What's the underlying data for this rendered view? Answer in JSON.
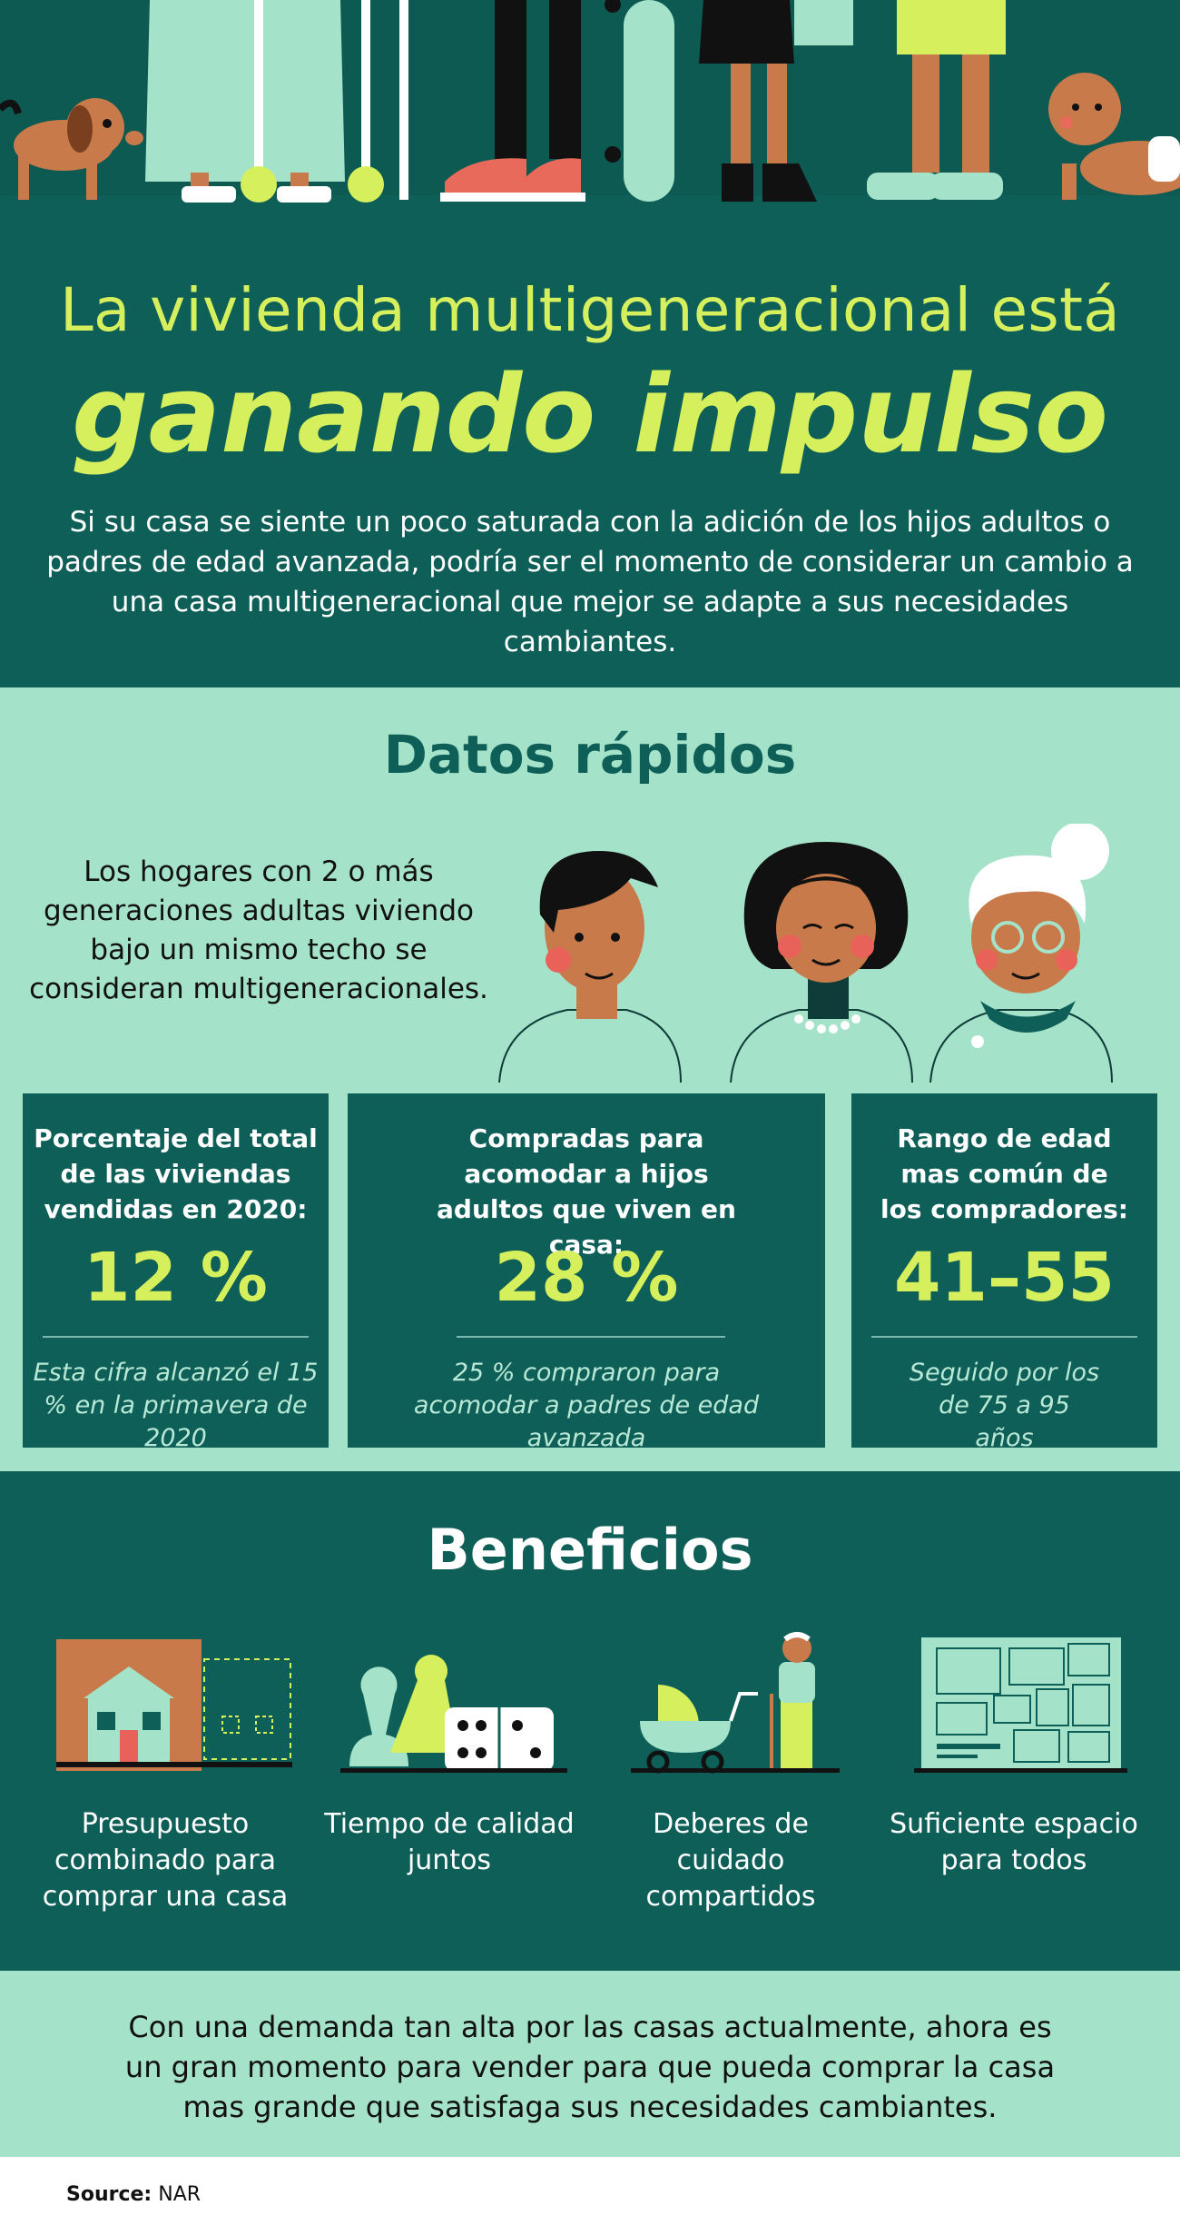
{
  "hero": {
    "alt_icons": [
      "dog-icon",
      "walker-icon",
      "sneakers-icon",
      "skateboard-icon",
      "baby-icon"
    ]
  },
  "intro": {
    "title_line1": "La vivienda multigeneracional está",
    "title_line2": "ganando impulso",
    "description": "Si su casa se siente un poco saturada con la adición de los hijos adultos o padres de edad avanzada, podría ser el momento de considerar un cambio a una casa multigeneracional que mejor se adapte a sus necesidades cambiantes."
  },
  "facts": {
    "heading": "Datos rápidos",
    "definition": "Los hogares con 2 o más generaciones adultas viviendo bajo un mismo techo se consideran multigeneracionales.",
    "cards": [
      {
        "heading": "Porcentaje del total de las viviendas vendidas en 2020:",
        "value": "12 %",
        "note": "Esta cifra alcanzó el 15 % en la primavera de 2020"
      },
      {
        "heading": "Compradas para acomodar a hijos adultos que viven en casa:",
        "value": "28 %",
        "note": "25 % compraron para acomodar a padres de edad avanzada"
      },
      {
        "heading": "Rango de edad mas común de los compradores:",
        "value": "41–55",
        "note": "Seguido por los de 75 a 95 años"
      }
    ]
  },
  "benefits": {
    "heading": "Beneficios",
    "items": [
      {
        "label": "Presupuesto combinado para comprar una casa",
        "icon": "house-icon"
      },
      {
        "label": "Tiempo de calidad juntos",
        "icon": "game-pieces-icon"
      },
      {
        "label": "Deberes de cuidado compartidos",
        "icon": "caregiver-icon"
      },
      {
        "label": "Suficiente espacio para todos",
        "icon": "floor-plan-icon"
      }
    ]
  },
  "closing": "Con una demanda tan alta por las casas actualmente, ahora es un gran momento para vender para que pueda comprar la casa mas grande que satisfaga sus necesidades cambiantes.",
  "source": {
    "label": "Source:",
    "value": "NAR"
  },
  "colors": {
    "dark_teal": "#0e5f58",
    "mint": "#a4e2ca",
    "lime": "#d6ef5c",
    "skin": "#c97a4a"
  }
}
